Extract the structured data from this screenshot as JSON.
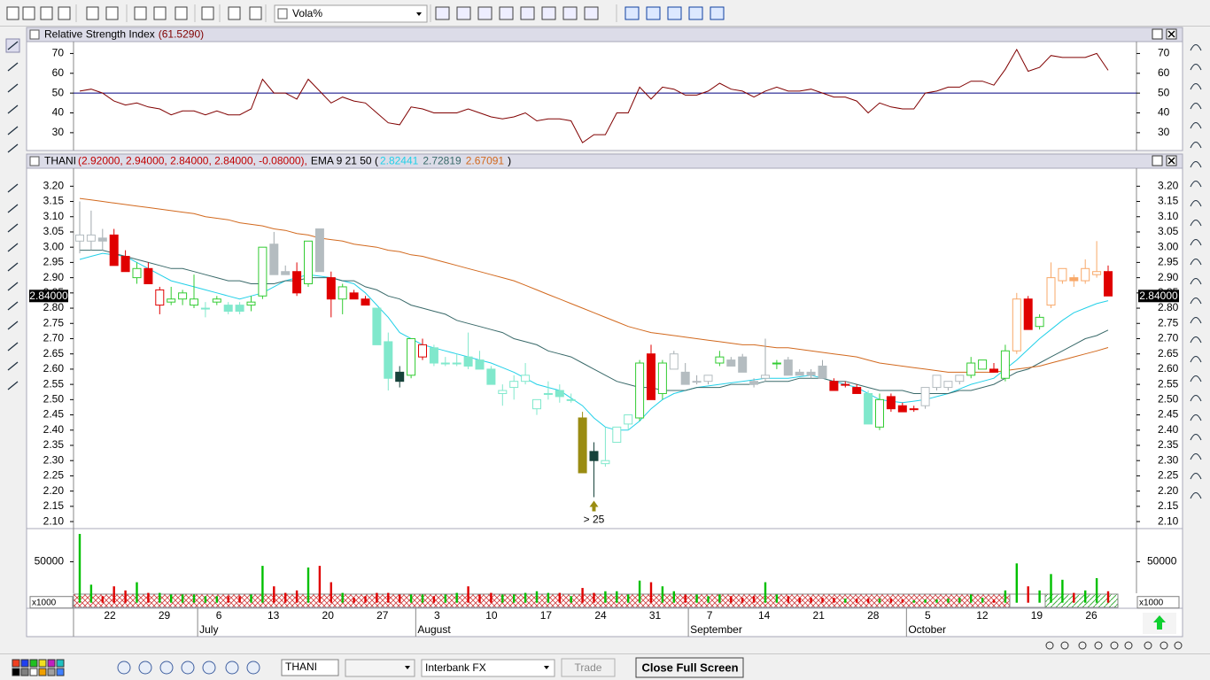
{
  "toolbar": {
    "indicator_select": "Vola%"
  },
  "statusbar": {
    "symbol": "THANI",
    "broker": "Interbank FX",
    "trade": "Trade",
    "close_full_screen": "Close Full Screen"
  },
  "time_axis": {
    "weeks": [
      "22",
      "29",
      "6",
      "13",
      "20",
      "27",
      "3",
      "10",
      "17",
      "24",
      "31",
      "7",
      "14",
      "21",
      "28",
      "5",
      "12",
      "19",
      "26"
    ],
    "months": [
      "July",
      "August",
      "September",
      "October"
    ]
  },
  "chart_data": [
    {
      "type": "line",
      "title": "Relative Strength Index",
      "title_value": "(61.5290)",
      "color": "#800000",
      "values": [
        51,
        52,
        50,
        46,
        44,
        45,
        43,
        42,
        39,
        41,
        41,
        39,
        41,
        39,
        39,
        42,
        57,
        50,
        50,
        47,
        57,
        51,
        45,
        48,
        46,
        45,
        40,
        35,
        34,
        43,
        42,
        40,
        40,
        40,
        42,
        40,
        38,
        37,
        38,
        40,
        36,
        37,
        37,
        36,
        25,
        29,
        29,
        40,
        40,
        53,
        47,
        53,
        52,
        49,
        49,
        51,
        55,
        52,
        51,
        48,
        51,
        53,
        51,
        51,
        52,
        50,
        48,
        48,
        46,
        40,
        45,
        43,
        42,
        42,
        50,
        51,
        53,
        53,
        56,
        56,
        54,
        62,
        72,
        61,
        63,
        69,
        68,
        68,
        68,
        70,
        61.529
      ],
      "reference_line": 50,
      "reference_color": "#000080",
      "ylim": [
        21,
        76
      ],
      "yticks": [
        30,
        40,
        50,
        60,
        70
      ]
    },
    {
      "type": "candlestick",
      "title": "THANI",
      "ohlc_label": "(2.92000, 2.94000, 2.84000, 2.84000, -0.08000),",
      "ema_label": "EMA 9 21 50 (",
      "legend_close": ")",
      "candles": [
        [
          3.02,
          3.15,
          2.98,
          3.04
        ],
        [
          3.02,
          3.12,
          2.99,
          3.04
        ],
        [
          3.03,
          3.06,
          2.99,
          3.02
        ],
        [
          3.04,
          3.06,
          2.94,
          2.94
        ],
        [
          2.97,
          2.99,
          2.92,
          2.92
        ],
        [
          2.9,
          2.95,
          2.88,
          2.93
        ],
        [
          2.93,
          2.95,
          2.88,
          2.88
        ],
        [
          2.81,
          2.87,
          2.78,
          2.86
        ],
        [
          2.82,
          2.87,
          2.81,
          2.83
        ],
        [
          2.83,
          2.86,
          2.81,
          2.85
        ],
        [
          2.81,
          2.91,
          2.8,
          2.83
        ],
        [
          2.8,
          2.82,
          2.77,
          2.8
        ],
        [
          2.82,
          2.84,
          2.81,
          2.83
        ],
        [
          2.81,
          2.82,
          2.78,
          2.79
        ],
        [
          2.81,
          2.82,
          2.78,
          2.79
        ],
        [
          2.81,
          2.84,
          2.79,
          2.82
        ],
        [
          2.84,
          3.0,
          2.83,
          3.0
        ],
        [
          3.01,
          3.05,
          2.91,
          2.91
        ],
        [
          2.92,
          2.94,
          2.91,
          2.91
        ],
        [
          2.92,
          2.95,
          2.84,
          2.85
        ],
        [
          2.88,
          3.02,
          2.87,
          3.02
        ],
        [
          3.06,
          3.06,
          2.92,
          2.92
        ],
        [
          2.9,
          2.92,
          2.77,
          2.83
        ],
        [
          2.83,
          2.88,
          2.78,
          2.87
        ],
        [
          2.85,
          2.86,
          2.83,
          2.83
        ],
        [
          2.83,
          2.84,
          2.81,
          2.81
        ],
        [
          2.8,
          2.8,
          2.68,
          2.68
        ],
        [
          2.69,
          2.72,
          2.53,
          2.57
        ],
        [
          2.59,
          2.61,
          2.54,
          2.56
        ],
        [
          2.58,
          2.7,
          2.57,
          2.7
        ],
        [
          2.64,
          2.7,
          2.63,
          2.68
        ],
        [
          2.67,
          2.68,
          2.61,
          2.62
        ],
        [
          2.62,
          2.64,
          2.61,
          2.62
        ],
        [
          2.62,
          2.65,
          2.61,
          2.62
        ],
        [
          2.64,
          2.72,
          2.6,
          2.61
        ],
        [
          2.63,
          2.66,
          2.6,
          2.6
        ],
        [
          2.6,
          2.61,
          2.55,
          2.55
        ],
        [
          2.52,
          2.55,
          2.48,
          2.53
        ],
        [
          2.54,
          2.58,
          2.5,
          2.56
        ],
        [
          2.56,
          2.62,
          2.55,
          2.58
        ],
        [
          2.47,
          2.5,
          2.45,
          2.5
        ],
        [
          2.52,
          2.56,
          2.5,
          2.52
        ],
        [
          2.53,
          2.55,
          2.49,
          2.51
        ],
        [
          2.5,
          2.52,
          2.49,
          2.5
        ],
        [
          2.44,
          2.46,
          2.26,
          2.26
        ],
        [
          2.33,
          2.36,
          2.18,
          2.3
        ],
        [
          2.29,
          2.41,
          2.28,
          2.3
        ],
        [
          2.36,
          2.41,
          2.36,
          2.41
        ],
        [
          2.42,
          2.45,
          2.4,
          2.45
        ],
        [
          2.44,
          2.63,
          2.43,
          2.62
        ],
        [
          2.65,
          2.68,
          2.5,
          2.5
        ],
        [
          2.52,
          2.63,
          2.5,
          2.62
        ],
        [
          2.6,
          2.66,
          2.6,
          2.65
        ],
        [
          2.59,
          2.62,
          2.55,
          2.55
        ],
        [
          2.56,
          2.58,
          2.55,
          2.56
        ],
        [
          2.56,
          2.58,
          2.55,
          2.58
        ],
        [
          2.62,
          2.66,
          2.61,
          2.64
        ],
        [
          2.63,
          2.64,
          2.61,
          2.61
        ],
        [
          2.64,
          2.65,
          2.59,
          2.59
        ],
        [
          2.56,
          2.57,
          2.54,
          2.55
        ],
        [
          2.57,
          2.7,
          2.56,
          2.58
        ],
        [
          2.62,
          2.63,
          2.6,
          2.62
        ],
        [
          2.63,
          2.64,
          2.58,
          2.58
        ],
        [
          2.59,
          2.6,
          2.58,
          2.58
        ],
        [
          2.59,
          2.6,
          2.57,
          2.58
        ],
        [
          2.61,
          2.63,
          2.57,
          2.57
        ],
        [
          2.56,
          2.57,
          2.53,
          2.53
        ],
        [
          2.55,
          2.56,
          2.54,
          2.55
        ],
        [
          2.54,
          2.55,
          2.52,
          2.52
        ],
        [
          2.52,
          2.53,
          2.42,
          2.42
        ],
        [
          2.41,
          2.52,
          2.4,
          2.5
        ],
        [
          2.51,
          2.52,
          2.46,
          2.47
        ],
        [
          2.48,
          2.49,
          2.46,
          2.46
        ],
        [
          2.47,
          2.48,
          2.46,
          2.47
        ],
        [
          2.48,
          2.54,
          2.47,
          2.54
        ],
        [
          2.54,
          2.58,
          2.53,
          2.58
        ],
        [
          2.54,
          2.56,
          2.53,
          2.56
        ],
        [
          2.56,
          2.58,
          2.55,
          2.58
        ],
        [
          2.58,
          2.64,
          2.57,
          2.62
        ],
        [
          2.6,
          2.63,
          2.6,
          2.63
        ],
        [
          2.6,
          2.62,
          2.59,
          2.59
        ],
        [
          2.57,
          2.68,
          2.56,
          2.66
        ],
        [
          2.66,
          2.85,
          2.65,
          2.83
        ],
        [
          2.83,
          2.84,
          2.73,
          2.73
        ],
        [
          2.74,
          2.78,
          2.73,
          2.77
        ],
        [
          2.81,
          2.95,
          2.8,
          2.9
        ],
        [
          2.89,
          2.93,
          2.88,
          2.93
        ],
        [
          2.9,
          2.91,
          2.87,
          2.89
        ],
        [
          2.89,
          2.96,
          2.88,
          2.93
        ],
        [
          2.91,
          3.02,
          2.9,
          2.92
        ],
        [
          2.92,
          2.94,
          2.84,
          2.84
        ]
      ],
      "candle_colors": "sssrrgrrgggcgccggssrgsrgrrcckgrcccccccccccccykcccgrgssssgssssgssssrrrcgrrrssssggrgorgooooor",
      "palette": {
        "s": "#b4bcc0",
        "r": "#e00000",
        "g": "#33cc33",
        "c": "#80e8cc",
        "k": "#16423a",
        "y": "#9a8c12",
        "o": "#f8a868"
      },
      "series": [
        {
          "value_label": "2.82441",
          "color": "#22d0e8",
          "values": [
            2.96,
            2.97,
            2.98,
            2.975,
            2.97,
            2.95,
            2.93,
            2.91,
            2.89,
            2.88,
            2.87,
            2.86,
            2.85,
            2.84,
            2.83,
            2.84,
            2.85,
            2.87,
            2.89,
            2.9,
            2.91,
            2.905,
            2.9,
            2.89,
            2.88,
            2.85,
            2.81,
            2.77,
            2.72,
            2.7,
            2.68,
            2.67,
            2.66,
            2.65,
            2.64,
            2.63,
            2.62,
            2.605,
            2.59,
            2.57,
            2.55,
            2.54,
            2.53,
            2.505,
            2.48,
            2.44,
            2.41,
            2.4,
            2.4,
            2.43,
            2.47,
            2.5,
            2.52,
            2.53,
            2.54,
            2.545,
            2.55,
            2.555,
            2.56,
            2.565,
            2.57,
            2.57,
            2.57,
            2.575,
            2.58,
            2.57,
            2.56,
            2.55,
            2.54,
            2.52,
            2.5,
            2.495,
            2.49,
            2.495,
            2.5,
            2.51,
            2.52,
            2.535,
            2.55,
            2.56,
            2.57,
            2.6,
            2.63,
            2.665,
            2.7,
            2.73,
            2.76,
            2.785,
            2.8,
            2.815,
            2.82441
          ]
        },
        {
          "value_label": "2.72819",
          "color": "#3a6a6a",
          "values": [
            2.99,
            2.99,
            2.99,
            2.98,
            2.97,
            2.96,
            2.95,
            2.94,
            2.93,
            2.93,
            2.92,
            2.91,
            2.9,
            2.89,
            2.89,
            2.88,
            2.88,
            2.88,
            2.89,
            2.89,
            2.9,
            2.9,
            2.9,
            2.89,
            2.89,
            2.87,
            2.86,
            2.84,
            2.83,
            2.81,
            2.8,
            2.79,
            2.78,
            2.76,
            2.75,
            2.74,
            2.73,
            2.72,
            2.7,
            2.69,
            2.68,
            2.66,
            2.65,
            2.64,
            2.62,
            2.6,
            2.58,
            2.56,
            2.55,
            2.54,
            2.54,
            2.53,
            2.53,
            2.53,
            2.54,
            2.54,
            2.54,
            2.55,
            2.55,
            2.55,
            2.56,
            2.56,
            2.56,
            2.57,
            2.57,
            2.57,
            2.56,
            2.56,
            2.55,
            2.54,
            2.53,
            2.53,
            2.53,
            2.52,
            2.52,
            2.52,
            2.52,
            2.53,
            2.53,
            2.54,
            2.55,
            2.57,
            2.59,
            2.6,
            2.62,
            2.64,
            2.66,
            2.68,
            2.7,
            2.71,
            2.72819
          ]
        },
        {
          "value_label": "2.67091",
          "color": "#d2691e",
          "values": [
            3.16,
            3.155,
            3.15,
            3.145,
            3.14,
            3.135,
            3.13,
            3.125,
            3.12,
            3.115,
            3.11,
            3.1,
            3.095,
            3.09,
            3.08,
            3.075,
            3.07,
            3.06,
            3.055,
            3.045,
            3.04,
            3.03,
            3.025,
            3.02,
            3.01,
            3.005,
            3.0,
            2.99,
            2.985,
            2.975,
            2.97,
            2.96,
            2.95,
            2.94,
            2.93,
            2.92,
            2.91,
            2.9,
            2.89,
            2.875,
            2.86,
            2.845,
            2.83,
            2.815,
            2.8,
            2.785,
            2.77,
            2.755,
            2.74,
            2.73,
            2.72,
            2.715,
            2.71,
            2.705,
            2.7,
            2.695,
            2.69,
            2.685,
            2.68,
            2.68,
            2.675,
            2.67,
            2.67,
            2.665,
            2.66,
            2.655,
            2.65,
            2.645,
            2.64,
            2.63,
            2.62,
            2.615,
            2.61,
            2.605,
            2.6,
            2.595,
            2.59,
            2.59,
            2.59,
            2.59,
            2.59,
            2.595,
            2.6,
            2.605,
            2.61,
            2.62,
            2.63,
            2.64,
            2.65,
            2.66,
            2.67091
          ]
        }
      ],
      "last_price": {
        "value": 2.84,
        "label": "2.84000"
      },
      "annotation": "> 25",
      "ylim": [
        2.077,
        3.259
      ],
      "yticks": [
        {
          "value": 3.2,
          "label": "3.20"
        },
        {
          "value": 3.15,
          "label": "3.15"
        },
        {
          "value": 3.1,
          "label": "3.10"
        },
        {
          "value": 3.05,
          "label": "3.05"
        },
        {
          "value": 3.0,
          "label": "3.00"
        },
        {
          "value": 2.95,
          "label": "2.95"
        },
        {
          "value": 2.9,
          "label": "2.90"
        },
        {
          "value": 2.85,
          "label": "2.85"
        },
        {
          "value": 2.8,
          "label": "2.80"
        },
        {
          "value": 2.75,
          "label": "2.75"
        },
        {
          "value": 2.7,
          "label": "2.70"
        },
        {
          "value": 2.65,
          "label": "2.65"
        },
        {
          "value": 2.6,
          "label": "2.60"
        },
        {
          "value": 2.55,
          "label": "2.55"
        },
        {
          "value": 2.5,
          "label": "2.50"
        },
        {
          "value": 2.45,
          "label": "2.45"
        },
        {
          "value": 2.4,
          "label": "2.40"
        },
        {
          "value": 2.35,
          "label": "2.35"
        },
        {
          "value": 2.3,
          "label": "2.30"
        },
        {
          "value": 2.25,
          "label": "2.25"
        },
        {
          "value": 2.2,
          "label": "2.20"
        },
        {
          "value": 2.15,
          "label": "2.15"
        },
        {
          "value": 2.1,
          "label": "2.10"
        }
      ]
    },
    {
      "type": "bar",
      "unit_label": "x1000",
      "up_color": "#00c000",
      "down_color": "#e00000",
      "values": [
        84000,
        22000,
        8000,
        20000,
        15000,
        25000,
        12000,
        12000,
        10000,
        10000,
        10000,
        8000,
        8000,
        8000,
        8000,
        10000,
        45000,
        20000,
        12000,
        15000,
        43000,
        45000,
        25000,
        12000,
        6000,
        8000,
        12000,
        12000,
        10000,
        10000,
        10000,
        8000,
        10000,
        12000,
        20000,
        10000,
        12000,
        10000,
        10000,
        12000,
        14000,
        12000,
        12000,
        8000,
        18000,
        12000,
        14000,
        14000,
        10000,
        27000,
        25000,
        20000,
        14000,
        10000,
        10000,
        8000,
        10000,
        8000,
        6000,
        8000,
        25000,
        10000,
        8000,
        6000,
        6000,
        6000,
        6000,
        5000,
        5000,
        5000,
        5000,
        5000,
        4000,
        3000,
        4000,
        4000,
        5000,
        6000,
        10000,
        6000,
        4000,
        15000,
        48000,
        20000,
        15000,
        35000,
        28000,
        12000,
        15000,
        30000,
        14000
      ],
      "ylim": [
        -6800,
        90500
      ],
      "yticks": [
        50000
      ]
    }
  ]
}
